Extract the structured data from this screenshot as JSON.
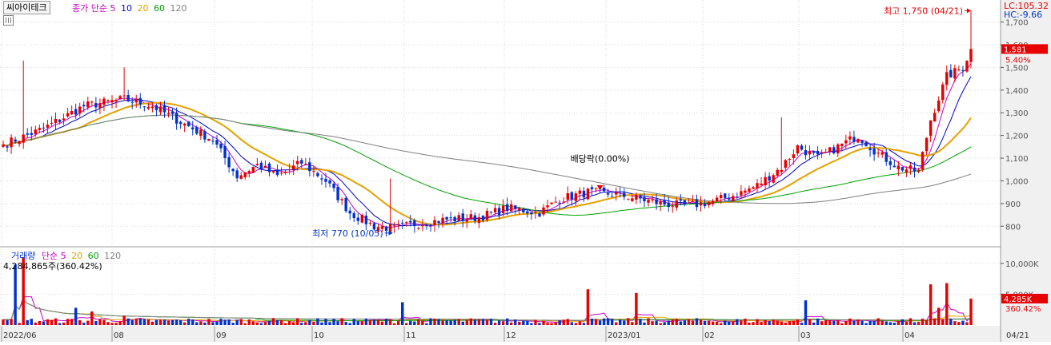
{
  "header": {
    "stock_name": "씨아이테크",
    "ma_title": "종가 단순",
    "ma_periods": [
      "5",
      "10",
      "20",
      "60",
      "120"
    ],
    "lc_text": "LC:105.32",
    "hc_text": "HC:-9.66"
  },
  "volume_header": {
    "title": "거래량",
    "ma_title": "단순",
    "ma_periods": [
      "5",
      "20",
      "60",
      "120"
    ],
    "current_value": "4,284,865주(360.42%)"
  },
  "annotations": {
    "high": "최고 1,750 (04/21)",
    "low": "최저 770 (10/05)",
    "dividend": "배당락(0.00%)"
  },
  "price_badge": {
    "price": "1,581",
    "change": "5.40%"
  },
  "volume_badge": {
    "value": "4,285K",
    "change": "360.42%"
  },
  "colors": {
    "up": "#e60000",
    "down": "#0033cc",
    "ma5": "#c800c8",
    "ma10": "#0000c8",
    "ma20": "#e6a000",
    "ma60": "#00a000",
    "ma120": "#808080",
    "grid": "#d9d9d9",
    "axis_panel": "#f0f0f0"
  },
  "chart_data": [
    {
      "type": "candlestick",
      "title": "씨아이테크",
      "price_axis_ticks": [
        "1,700",
        "1,600",
        "1,500",
        "1,400",
        "1,300",
        "1,200",
        "1,100",
        "1,000",
        "900",
        "800"
      ],
      "ylim": [
        720,
        1790
      ],
      "date_axis_ticks": [
        "2022/06",
        "08",
        "09",
        "10",
        "11",
        "12",
        "2023/01",
        "02",
        "03",
        "04"
      ],
      "anchor_closes": [
        [
          0,
          1160
        ],
        [
          10,
          1230
        ],
        [
          20,
          1330
        ],
        [
          30,
          1360
        ],
        [
          37,
          1330
        ],
        [
          45,
          1250
        ],
        [
          52,
          1180
        ],
        [
          58,
          1020
        ],
        [
          63,
          1070
        ],
        [
          68,
          1020
        ],
        [
          74,
          1080
        ],
        [
          80,
          1000
        ],
        [
          86,
          860
        ],
        [
          92,
          800
        ],
        [
          97,
          790
        ],
        [
          102,
          810
        ],
        [
          110,
          830
        ],
        [
          118,
          840
        ],
        [
          125,
          880
        ],
        [
          133,
          860
        ],
        [
          138,
          920
        ],
        [
          145,
          950
        ],
        [
          152,
          940
        ],
        [
          158,
          920
        ],
        [
          163,
          900
        ],
        [
          170,
          890
        ],
        [
          176,
          910
        ],
        [
          182,
          940
        ],
        [
          187,
          980
        ],
        [
          193,
          1060
        ],
        [
          197,
          1150
        ],
        [
          202,
          1100
        ],
        [
          207,
          1150
        ],
        [
          212,
          1200
        ],
        [
          217,
          1120
        ],
        [
          222,
          1060
        ],
        [
          227,
          1040
        ],
        [
          230,
          1270
        ],
        [
          234,
          1460
        ],
        [
          238,
          1500
        ],
        [
          240,
          1581
        ]
      ],
      "extremes": {
        "high": 1750,
        "high_date": "04/21",
        "low": 770,
        "low_date": "10/05"
      },
      "last_close": 1581,
      "last_change_pct": 5.4,
      "moving_averages": [
        "5",
        "10",
        "20",
        "60",
        "120"
      ]
    },
    {
      "type": "bar",
      "title": "거래량",
      "value_axis_ticks": [
        "10,000K",
        "5,000K"
      ],
      "ylim": [
        0,
        12300
      ],
      "unit": "K",
      "spikes": [
        [
          3,
          9800
        ],
        [
          5,
          11000
        ],
        [
          18,
          2800
        ],
        [
          22,
          2200
        ],
        [
          30,
          1500
        ],
        [
          80,
          1000
        ],
        [
          99,
          3700
        ],
        [
          145,
          5800
        ],
        [
          157,
          5200
        ],
        [
          199,
          4000
        ],
        [
          230,
          6600
        ],
        [
          232,
          2800
        ],
        [
          234,
          6800
        ],
        [
          240,
          4285
        ]
      ],
      "baseline_volume": 700,
      "last_value_k": 4285,
      "last_change_pct": 360.42,
      "moving_averages": [
        "5",
        "20",
        "60",
        "120"
      ]
    }
  ]
}
